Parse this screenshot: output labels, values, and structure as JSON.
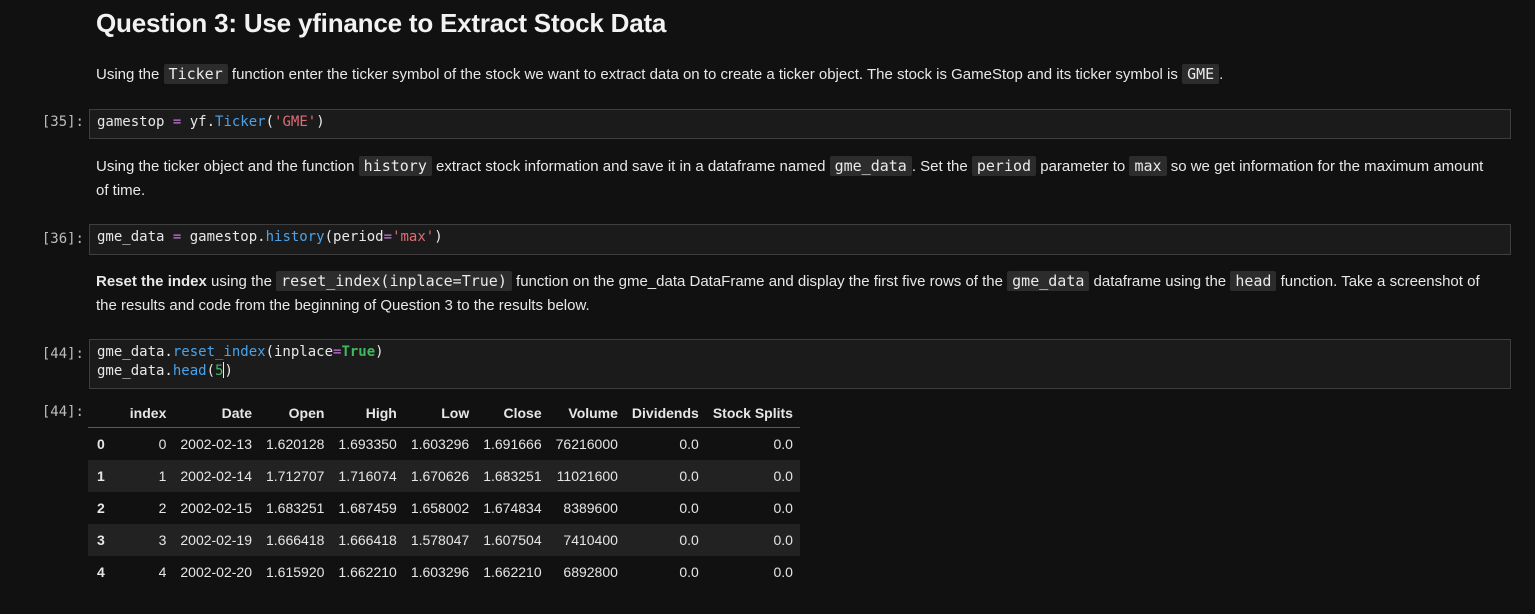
{
  "heading": "Question 3: Use yfinance to Extract Stock Data",
  "para1": {
    "t1": "Using the ",
    "c1": "Ticker",
    "t2": " function enter the ticker symbol of the stock we want to extract data on to create a ticker object. The stock is GameStop and its ticker symbol is ",
    "c2": "GME",
    "t3": "."
  },
  "cell35": {
    "prompt": "[35]:",
    "var": "gamestop ",
    "eq": "=",
    "obj": " yf.",
    "fn": "Ticker",
    "open": "(",
    "arg": "'GME'",
    "close": ")"
  },
  "para2": {
    "t1": "Using the ticker object and the function ",
    "c1": "history",
    "t2": " extract stock information and save it in a dataframe named ",
    "c2": "gme_data",
    "t3": ". Set the ",
    "c3": "period",
    "t4": " parameter to ",
    "c4": "max",
    "t5": " so we get information for the maximum amount of time."
  },
  "cell36": {
    "prompt": "[36]:",
    "var": "gme_data ",
    "eq": "=",
    "obj": " gamestop.",
    "fn": "history",
    "open": "(period",
    "eq2": "=",
    "arg": "'max'",
    "close": ")"
  },
  "para3": {
    "bold": "Reset the index",
    "t1": " using the ",
    "c1": "reset_index(inplace=True)",
    "t2": " function on the gme_data DataFrame and display the first five rows of the ",
    "c2": "gme_data",
    "t3": " dataframe using the ",
    "c3": "head",
    "t4": " function. Take a screenshot of the results and code from the beginning of Question 3 to the results below."
  },
  "cell44": {
    "prompt": "[44]:",
    "l1_obj": "gme_data.",
    "l1_fn": "reset_index",
    "l1_open": "(inplace",
    "l1_eq": "=",
    "l1_kw": "True",
    "l1_close": ")",
    "l2_obj": "gme_data.",
    "l2_fn": "head",
    "l2_open": "(",
    "l2_num": "5",
    "l2_close": ")"
  },
  "output44": {
    "prompt": "[44]:",
    "columns": [
      "",
      "index",
      "Date",
      "Open",
      "High",
      "Low",
      "Close",
      "Volume",
      "Dividends",
      "Stock Splits"
    ],
    "rows": [
      [
        "0",
        "0",
        "2002-02-13",
        "1.620128",
        "1.693350",
        "1.603296",
        "1.691666",
        "76216000",
        "0.0",
        "0.0"
      ],
      [
        "1",
        "1",
        "2002-02-14",
        "1.712707",
        "1.716074",
        "1.670626",
        "1.683251",
        "11021600",
        "0.0",
        "0.0"
      ],
      [
        "2",
        "2",
        "2002-02-15",
        "1.683251",
        "1.687459",
        "1.658002",
        "1.674834",
        "8389600",
        "0.0",
        "0.0"
      ],
      [
        "3",
        "3",
        "2002-02-19",
        "1.666418",
        "1.666418",
        "1.578047",
        "1.607504",
        "7410400",
        "0.0",
        "0.0"
      ],
      [
        "4",
        "4",
        "2002-02-20",
        "1.615920",
        "1.662210",
        "1.603296",
        "1.662210",
        "6892800",
        "0.0",
        "0.0"
      ]
    ]
  },
  "colors": {
    "background": "#111111",
    "code_bg": "#1b1b1b",
    "operator": "#c678dd",
    "function": "#4aa3ea",
    "string": "#e06c75",
    "keyword": "#3fb95f"
  }
}
